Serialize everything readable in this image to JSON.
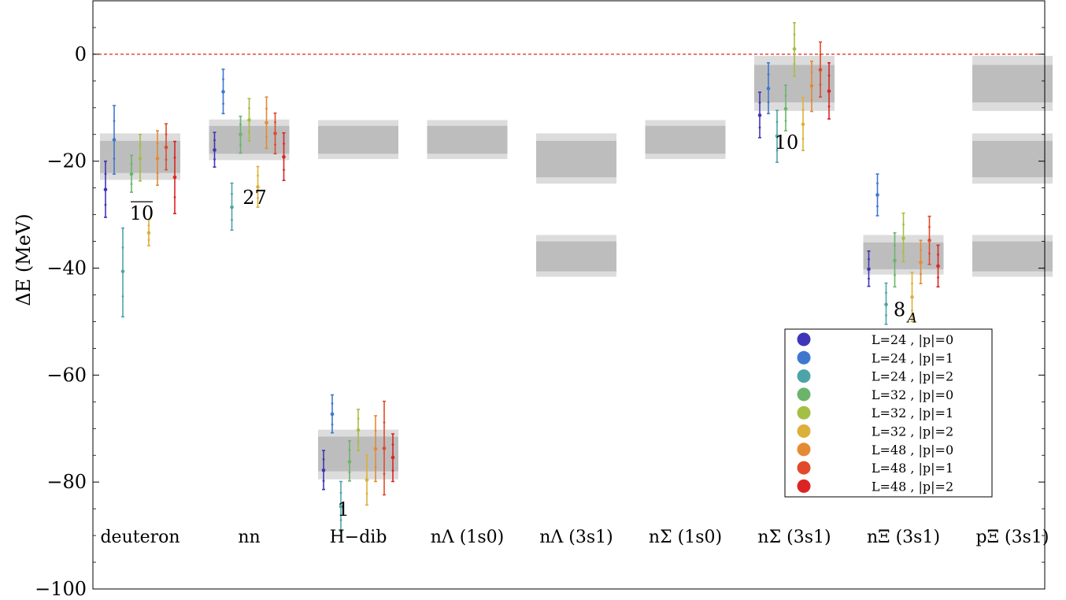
{
  "chart_data": {
    "type": "scatter",
    "title": "",
    "xlabel": "",
    "ylabel": "ΔE (MeV)",
    "ylim": [
      -100,
      10
    ],
    "yticks": [
      0,
      -20,
      -40,
      -60,
      -80,
      -100
    ],
    "ytick_labels": [
      "0",
      "−20",
      "−40",
      "−60",
      "−80",
      "−100"
    ],
    "categories": [
      "deuteron",
      "nn",
      "H−dib",
      "nΛ (1s0)",
      "nΛ (3s1)",
      "nΣ (1s0)",
      "nΣ (3s1)",
      "nΞ (3s1)",
      "pΞ (3s1)"
    ],
    "reference_line": {
      "y": 0,
      "style": "dashed",
      "color": "#e0201b"
    },
    "grid": false,
    "legend_position": "lower-right",
    "bands": [
      {
        "category": "deuteron",
        "outer": [
          -23.5,
          -14.8
        ],
        "inner": [
          -22.2,
          -16.2
        ]
      },
      {
        "category": "nn",
        "outer": [
          -19.8,
          -12.2
        ],
        "inner": [
          -18.6,
          -13.4
        ]
      },
      {
        "category": "H−dib",
        "outer": [
          -79.5,
          -70.2
        ],
        "inner": [
          -78.0,
          -71.5
        ]
      },
      {
        "category": "H−dib",
        "outer": [
          -19.6,
          -12.3
        ],
        "inner": [
          -18.6,
          -13.4
        ]
      },
      {
        "category": "nΛ (1s0)",
        "outer": [
          -19.6,
          -12.3
        ],
        "inner": [
          -18.6,
          -13.4
        ]
      },
      {
        "category": "nΛ (3s1)",
        "outer": [
          -24.2,
          -14.8
        ],
        "inner": [
          -23.0,
          -16.2
        ]
      },
      {
        "category": "nΛ (3s1)",
        "outer": [
          -41.6,
          -33.8
        ],
        "inner": [
          -40.6,
          -35.0
        ]
      },
      {
        "category": "nΣ (1s0)",
        "outer": [
          -19.6,
          -12.3
        ],
        "inner": [
          -18.6,
          -13.4
        ]
      },
      {
        "category": "nΣ (3s1)",
        "outer": [
          -10.6,
          -0.3
        ],
        "inner": [
          -9.0,
          -2.0
        ]
      },
      {
        "category": "nΞ (3s1)",
        "outer": [
          -41.2,
          -33.8
        ],
        "inner": [
          -40.2,
          -35.2
        ]
      },
      {
        "category": "pΞ (3s1)",
        "outer": [
          -10.6,
          -0.3
        ],
        "inner": [
          -9.0,
          -2.0
        ]
      },
      {
        "category": "pΞ (3s1)",
        "outer": [
          -24.2,
          -14.8
        ],
        "inner": [
          -23.0,
          -16.2
        ]
      },
      {
        "category": "pΞ (3s1)",
        "outer": [
          -41.6,
          -33.8
        ],
        "inner": [
          -40.6,
          -35.0
        ]
      }
    ],
    "series": [
      {
        "name": "L=24 , |p|=0",
        "color": "#3f35b8",
        "points": [
          {
            "category": "deuteron",
            "y": -25.3,
            "lo": -30.5,
            "hi": -20.0
          },
          {
            "category": "nn",
            "y": -17.9,
            "lo": -21.1,
            "hi": -14.6
          },
          {
            "category": "H−dib",
            "y": -77.8,
            "lo": -81.4,
            "hi": -74.1
          },
          {
            "category": "nΣ (3s1)",
            "y": -11.4,
            "lo": -15.6,
            "hi": -7.1
          },
          {
            "category": "nΞ (3s1)",
            "y": -40.2,
            "lo": -43.4,
            "hi": -36.8
          }
        ]
      },
      {
        "name": "L=24 , |p|=1",
        "color": "#3f77cf",
        "points": [
          {
            "category": "deuteron",
            "y": -16.0,
            "lo": -22.4,
            "hi": -9.6
          },
          {
            "category": "nn",
            "y": -7.0,
            "lo": -11.1,
            "hi": -2.8
          },
          {
            "category": "H−dib",
            "y": -67.3,
            "lo": -70.8,
            "hi": -63.7
          },
          {
            "category": "nΣ (3s1)",
            "y": -6.4,
            "lo": -11.1,
            "hi": -1.6
          },
          {
            "category": "nΞ (3s1)",
            "y": -26.3,
            "lo": -30.2,
            "hi": -22.4
          }
        ]
      },
      {
        "name": "L=24 , |p|=2",
        "color": "#4ea3a8",
        "points": [
          {
            "category": "deuteron",
            "y": -40.6,
            "lo": -49.1,
            "hi": -32.5
          },
          {
            "category": "nn",
            "y": -28.6,
            "lo": -32.9,
            "hi": -24.1
          },
          {
            "category": "H−dib",
            "y": -84.6,
            "lo": -89.2,
            "hi": -79.9
          },
          {
            "category": "nΣ (3s1)",
            "y": -15.3,
            "lo": -20.2,
            "hi": -10.5
          },
          {
            "category": "nΞ (3s1)",
            "y": -46.8,
            "lo": -50.5,
            "hi": -42.8
          }
        ]
      },
      {
        "name": "L=32 , |p|=0",
        "color": "#6cb46c",
        "points": [
          {
            "category": "deuteron",
            "y": -22.4,
            "lo": -25.8,
            "hi": -18.9
          },
          {
            "category": "nn",
            "y": -15.0,
            "lo": -18.5,
            "hi": -11.6
          },
          {
            "category": "H−dib",
            "y": -76.2,
            "lo": -79.8,
            "hi": -72.3
          },
          {
            "category": "nΣ (3s1)",
            "y": -10.2,
            "lo": -14.3,
            "hi": -5.8
          },
          {
            "category": "nΞ (3s1)",
            "y": -38.6,
            "lo": -43.5,
            "hi": -33.4
          }
        ]
      },
      {
        "name": "L=32 , |p|=1",
        "color": "#a4bf45",
        "points": [
          {
            "category": "deuteron",
            "y": -19.5,
            "lo": -23.7,
            "hi": -15.0
          },
          {
            "category": "nn",
            "y": -12.3,
            "lo": -16.2,
            "hi": -8.3
          },
          {
            "category": "H−dib",
            "y": -70.3,
            "lo": -74.1,
            "hi": -66.4
          },
          {
            "category": "nΣ (3s1)",
            "y": 1.0,
            "lo": -4.1,
            "hi": 5.9
          },
          {
            "category": "nΞ (3s1)",
            "y": -34.4,
            "lo": -38.8,
            "hi": -29.7
          }
        ]
      },
      {
        "name": "L=32 , |p|=2",
        "color": "#dcb03a",
        "points": [
          {
            "category": "deuteron",
            "y": -33.4,
            "lo": -35.8,
            "hi": -30.9
          },
          {
            "category": "nn",
            "y": -24.8,
            "lo": -28.6,
            "hi": -21.0
          },
          {
            "category": "H−dib",
            "y": -79.6,
            "lo": -84.3,
            "hi": -74.9
          },
          {
            "category": "nΣ (3s1)",
            "y": -13.1,
            "lo": -18.0,
            "hi": -8.1
          },
          {
            "category": "nΞ (3s1)",
            "y": -45.4,
            "lo": -50.0,
            "hi": -40.8
          }
        ]
      },
      {
        "name": "L=48 , |p|=0",
        "color": "#e58a34",
        "points": [
          {
            "category": "deuteron",
            "y": -19.5,
            "lo": -24.5,
            "hi": -14.3
          },
          {
            "category": "nn",
            "y": -12.8,
            "lo": -17.6,
            "hi": -8.0
          },
          {
            "category": "H−dib",
            "y": -73.8,
            "lo": -79.9,
            "hi": -67.6
          },
          {
            "category": "nΣ (3s1)",
            "y": -5.9,
            "lo": -10.7,
            "hi": -1.3
          },
          {
            "category": "nΞ (3s1)",
            "y": -38.9,
            "lo": -42.9,
            "hi": -34.8
          }
        ]
      },
      {
        "name": "L=48 , |p|=1",
        "color": "#e04a2a",
        "points": [
          {
            "category": "deuteron",
            "y": -17.4,
            "lo": -21.6,
            "hi": -13.0
          },
          {
            "category": "nn",
            "y": -14.8,
            "lo": -18.6,
            "hi": -11.0
          },
          {
            "category": "H−dib",
            "y": -73.7,
            "lo": -82.4,
            "hi": -64.9
          },
          {
            "category": "nΣ (3s1)",
            "y": -2.9,
            "lo": -8.0,
            "hi": 2.3
          },
          {
            "category": "nΞ (3s1)",
            "y": -34.8,
            "lo": -39.3,
            "hi": -30.3
          }
        ]
      },
      {
        "name": "L=48 , |p|=2",
        "color": "#dc2424",
        "points": [
          {
            "category": "deuteron",
            "y": -23.0,
            "lo": -29.8,
            "hi": -16.3
          },
          {
            "category": "nn",
            "y": -19.2,
            "lo": -23.6,
            "hi": -14.7
          },
          {
            "category": "H−dib",
            "y": -75.4,
            "lo": -79.9,
            "hi": -71.0
          },
          {
            "category": "nΣ (3s1)",
            "y": -6.9,
            "lo": -12.1,
            "hi": -1.6
          },
          {
            "category": "nΞ (3s1)",
            "y": -39.6,
            "lo": -43.5,
            "hi": -35.7
          }
        ]
      }
    ],
    "annotations": [
      {
        "category": "deuteron",
        "y": -29.5,
        "text": "10",
        "overline": true
      },
      {
        "category": "nn",
        "y": -26.5,
        "text": "27"
      },
      {
        "category": "H−dib",
        "y": -84.8,
        "text": "1"
      },
      {
        "category": "nΣ (3s1)",
        "y": -16.2,
        "text": "10"
      },
      {
        "category": "nΞ (3s1)",
        "y": -47.5,
        "text": "8",
        "subscript": "A"
      }
    ]
  }
}
